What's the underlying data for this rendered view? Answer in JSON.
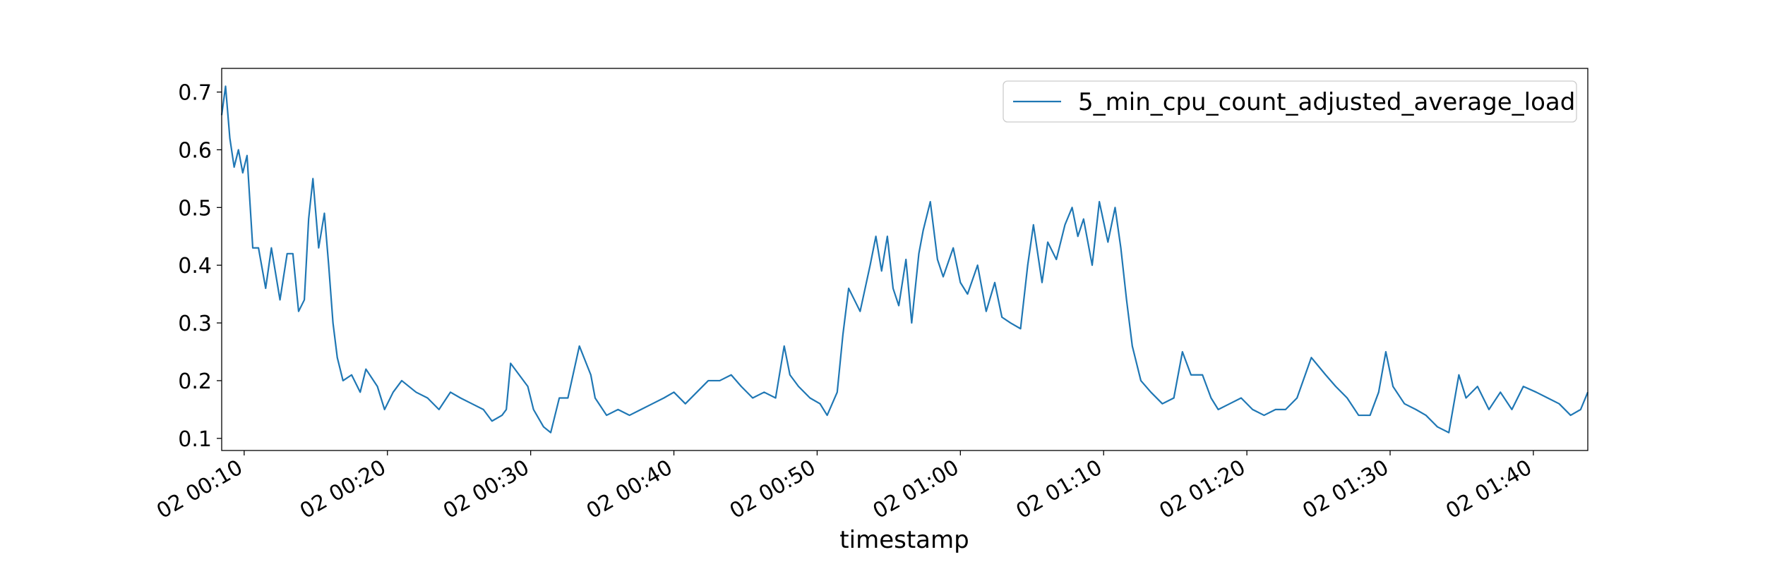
{
  "chart_data": {
    "type": "line",
    "x_label": "timestamp",
    "x": [
      8.43,
      8.7,
      9,
      9.3,
      9.6,
      9.9,
      10.2,
      10.6,
      11,
      11.5,
      11.9,
      12.5,
      13,
      13.4,
      13.8,
      14.2,
      14.5,
      14.8,
      15.2,
      15.6,
      15.9,
      16.2,
      16.5,
      16.9,
      17.5,
      18.1,
      18.5,
      19.3,
      19.8,
      20.4,
      21,
      22,
      22.8,
      23.6,
      24.4,
      25.1,
      25.9,
      26.7,
      27.3,
      28,
      28.3,
      28.6,
      29.2,
      29.8,
      30.2,
      30.9,
      31.4,
      32,
      32.6,
      33.4,
      34.2,
      34.5,
      35.3,
      36.1,
      36.9,
      37.7,
      38.5,
      39.3,
      40,
      40.8,
      41.6,
      42.4,
      43.2,
      44,
      44.7,
      45.5,
      46.3,
      47.1,
      47.5,
      47.7,
      48.1,
      48.7,
      49.5,
      50.2,
      50.7,
      51.4,
      51.8,
      52.2,
      53,
      53.7,
      54.1,
      54.5,
      54.9,
      55.3,
      55.7,
      56.2,
      56.6,
      57.1,
      57.4,
      57.9,
      58.4,
      58.8,
      59.5,
      60,
      60.5,
      61.2,
      61.8,
      62.4,
      62.9,
      63.5,
      64.2,
      64.7,
      65.1,
      65.7,
      66.1,
      66.7,
      67.3,
      67.8,
      68.2,
      68.6,
      69.2,
      69.7,
      70.3,
      70.8,
      71.2,
      71.6,
      72,
      72.6,
      73.3,
      74.1,
      74.9,
      75.5,
      76.1,
      76.9,
      77.5,
      78,
      78.8,
      79.6,
      80.4,
      81.2,
      82,
      82.7,
      83.5,
      84.5,
      85.5,
      86.2,
      87,
      87.8,
      88.6,
      89.2,
      89.7,
      90.2,
      91,
      91.8,
      92.5,
      93.3,
      94.1,
      94.8,
      95.3,
      96.1,
      96.9,
      97.7,
      98.5,
      99.3,
      100.2,
      101,
      101.8,
      102.6,
      103.3,
      103.8
    ],
    "series": [
      {
        "name": "5_min_cpu_count_adjusted_average_load",
        "color": "#1f77b4",
        "values": [
          0.66,
          0.71,
          0.62,
          0.57,
          0.6,
          0.56,
          0.59,
          0.43,
          0.43,
          0.36,
          0.43,
          0.34,
          0.42,
          0.42,
          0.32,
          0.34,
          0.48,
          0.55,
          0.43,
          0.49,
          0.4,
          0.3,
          0.24,
          0.2,
          0.21,
          0.18,
          0.22,
          0.19,
          0.15,
          0.18,
          0.2,
          0.18,
          0.17,
          0.15,
          0.18,
          0.17,
          0.16,
          0.15,
          0.13,
          0.14,
          0.15,
          0.23,
          0.21,
          0.19,
          0.15,
          0.12,
          0.11,
          0.17,
          0.17,
          0.26,
          0.21,
          0.17,
          0.14,
          0.15,
          0.14,
          0.15,
          0.16,
          0.17,
          0.18,
          0.16,
          0.18,
          0.2,
          0.2,
          0.21,
          0.19,
          0.17,
          0.18,
          0.17,
          0.23,
          0.26,
          0.21,
          0.19,
          0.17,
          0.16,
          0.14,
          0.18,
          0.28,
          0.36,
          0.32,
          0.4,
          0.45,
          0.39,
          0.45,
          0.36,
          0.33,
          0.41,
          0.3,
          0.42,
          0.46,
          0.51,
          0.41,
          0.38,
          0.43,
          0.37,
          0.35,
          0.4,
          0.32,
          0.37,
          0.31,
          0.3,
          0.29,
          0.4,
          0.47,
          0.37,
          0.44,
          0.41,
          0.47,
          0.5,
          0.45,
          0.48,
          0.4,
          0.51,
          0.44,
          0.5,
          0.43,
          0.34,
          0.26,
          0.2,
          0.18,
          0.16,
          0.17,
          0.25,
          0.21,
          0.21,
          0.17,
          0.15,
          0.16,
          0.17,
          0.15,
          0.14,
          0.15,
          0.15,
          0.17,
          0.24,
          0.21,
          0.19,
          0.17,
          0.14,
          0.14,
          0.18,
          0.25,
          0.19,
          0.16,
          0.15,
          0.14,
          0.12,
          0.11,
          0.21,
          0.17,
          0.19,
          0.15,
          0.18,
          0.15,
          0.19,
          0.18,
          0.17,
          0.16,
          0.14,
          0.15,
          0.18
        ]
      }
    ],
    "xlim": [
      8.43,
      103.8
    ],
    "xticks": [
      {
        "value": 10,
        "label": "02 00:10"
      },
      {
        "value": 20,
        "label": "02 00:20"
      },
      {
        "value": 30,
        "label": "02 00:30"
      },
      {
        "value": 40,
        "label": "02 00:40"
      },
      {
        "value": 50,
        "label": "02 00:50"
      },
      {
        "value": 60,
        "label": "02 01:00"
      },
      {
        "value": 70,
        "label": "02 01:10"
      },
      {
        "value": 80,
        "label": "02 01:20"
      },
      {
        "value": 90,
        "label": "02 01:30"
      },
      {
        "value": 100,
        "label": "02 01:40"
      }
    ],
    "ylim": [
      0.079,
      0.741
    ],
    "yticks": [
      0.1,
      0.2,
      0.3,
      0.4,
      0.5,
      0.6,
      0.7
    ],
    "legend": "upper right"
  }
}
